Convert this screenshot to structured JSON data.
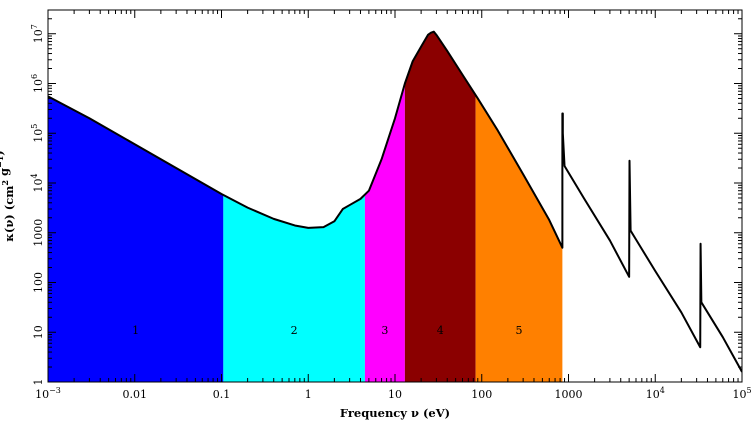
{
  "chart_data": {
    "type": "area",
    "title": "",
    "xlabel": "Frequency ν (eV)",
    "ylabel": "κ(ν) (cm² g⁻¹)",
    "x_scale": "log",
    "y_scale": "log",
    "xlim": [
      0.001,
      100000
    ],
    "ylim": [
      1,
      30000000
    ],
    "grid": false,
    "x_ticks": [
      {
        "value": 0.001,
        "mantissa": "10",
        "exp": "−3"
      },
      {
        "value": 0.01,
        "mantissa": "0.01",
        "exp": ""
      },
      {
        "value": 0.1,
        "mantissa": "0.1",
        "exp": ""
      },
      {
        "value": 1,
        "mantissa": "1",
        "exp": ""
      },
      {
        "value": 10,
        "mantissa": "10",
        "exp": ""
      },
      {
        "value": 100,
        "mantissa": "100",
        "exp": ""
      },
      {
        "value": 1000,
        "mantissa": "1000",
        "exp": ""
      },
      {
        "value": 10000,
        "mantissa": "10",
        "exp": "4"
      },
      {
        "value": 100000,
        "mantissa": "10",
        "exp": "5"
      }
    ],
    "y_ticks": [
      {
        "value": 1,
        "mantissa": "1",
        "exp": ""
      },
      {
        "value": 10,
        "mantissa": "10",
        "exp": ""
      },
      {
        "value": 100,
        "mantissa": "100",
        "exp": ""
      },
      {
        "value": 1000,
        "mantissa": "1000",
        "exp": ""
      },
      {
        "value": 10000,
        "mantissa": "10",
        "exp": "4"
      },
      {
        "value": 100000,
        "mantissa": "10",
        "exp": "5"
      },
      {
        "value": 1000000,
        "mantissa": "10",
        "exp": "6"
      },
      {
        "value": 10000000,
        "mantissa": "10",
        "exp": "7"
      }
    ],
    "curve": {
      "x": [
        0.001,
        0.003,
        0.01,
        0.03,
        0.1,
        0.2,
        0.4,
        0.7,
        1,
        1.5,
        2,
        2.5,
        3,
        4,
        5,
        7,
        10,
        13,
        16,
        20,
        24,
        26,
        28,
        30,
        40,
        60,
        90,
        150,
        300,
        600,
        850,
        850,
        860,
        860,
        900,
        1500,
        3000,
        5000,
        5000,
        5050,
        5050,
        5200,
        10000,
        20000,
        33000,
        33000,
        33300,
        33300,
        34000,
        60000,
        100000
      ],
      "y": [
        550000,
        200000,
        60000,
        20000,
        6000,
        3200,
        1900,
        1400,
        1250,
        1300,
        1700,
        3000,
        3600,
        4800,
        7000,
        30000,
        200000,
        1000000,
        2800000,
        5500000,
        9500000,
        10500000,
        11000000,
        9500000,
        4500000,
        1500000,
        500000,
        120000,
        15000,
        1800,
        500,
        250000,
        250000,
        100000,
        22000,
        5000,
        700,
        130,
        130,
        28000,
        28000,
        1100,
        170,
        25,
        5,
        5,
        600,
        600,
        40,
        8,
        1.6
      ]
    },
    "bands": [
      {
        "label": "1",
        "x0": 0.001,
        "x1": 0.105,
        "color": "#0000ff"
      },
      {
        "label": "2",
        "x0": 0.105,
        "x1": 4.5,
        "color": "#00ffff"
      },
      {
        "label": "3",
        "x0": 4.5,
        "x1": 13,
        "color": "#ff00ff"
      },
      {
        "label": "4",
        "x0": 13,
        "x1": 85,
        "color": "#8b0000"
      },
      {
        "label": "5",
        "x0": 85,
        "x1": 850,
        "color": "#ff8000"
      }
    ]
  }
}
